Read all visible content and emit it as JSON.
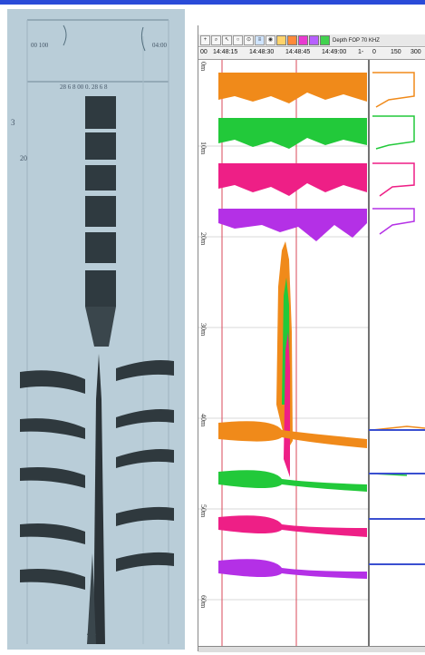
{
  "colors": {
    "accent_bar": "#2a4bd8",
    "paper": "#b9cdd8",
    "ink": "#2b3338",
    "orange": "#f08a1a",
    "green": "#22c93a",
    "magenta": "#ee1f86",
    "purple": "#b430e6",
    "blue": "#3a4fd0",
    "redline": "#d94a5a"
  },
  "paper": {
    "label_top_left": "00 100",
    "label_top_right": "04:00",
    "label_mid": "28 6 8  00 0.  28 6 8",
    "side_mark": "3",
    "scale_mark": "20"
  },
  "toolbar": {
    "icons": [
      "zoom-icon",
      "search-icon",
      "cursor-icon",
      "circle-icon",
      "pin-icon",
      "layers-icon",
      "eye-icon",
      "color-a-icon",
      "color-b-icon",
      "color-c-icon",
      "color-d-icon",
      "color-e-icon",
      "color-f-icon"
    ],
    "status_text": "Depth FOP 70 KHZ"
  },
  "timebar": {
    "labels": [
      "00",
      "14:48:15",
      "14:48:30",
      "14:48:45",
      "14:49:00",
      "1-"
    ],
    "scale_labels": [
      "0",
      "150",
      "300"
    ]
  },
  "plot": {
    "depth_labels": [
      "0m",
      "10m",
      "20m",
      "30m",
      "40m",
      "50m",
      "60m"
    ]
  }
}
